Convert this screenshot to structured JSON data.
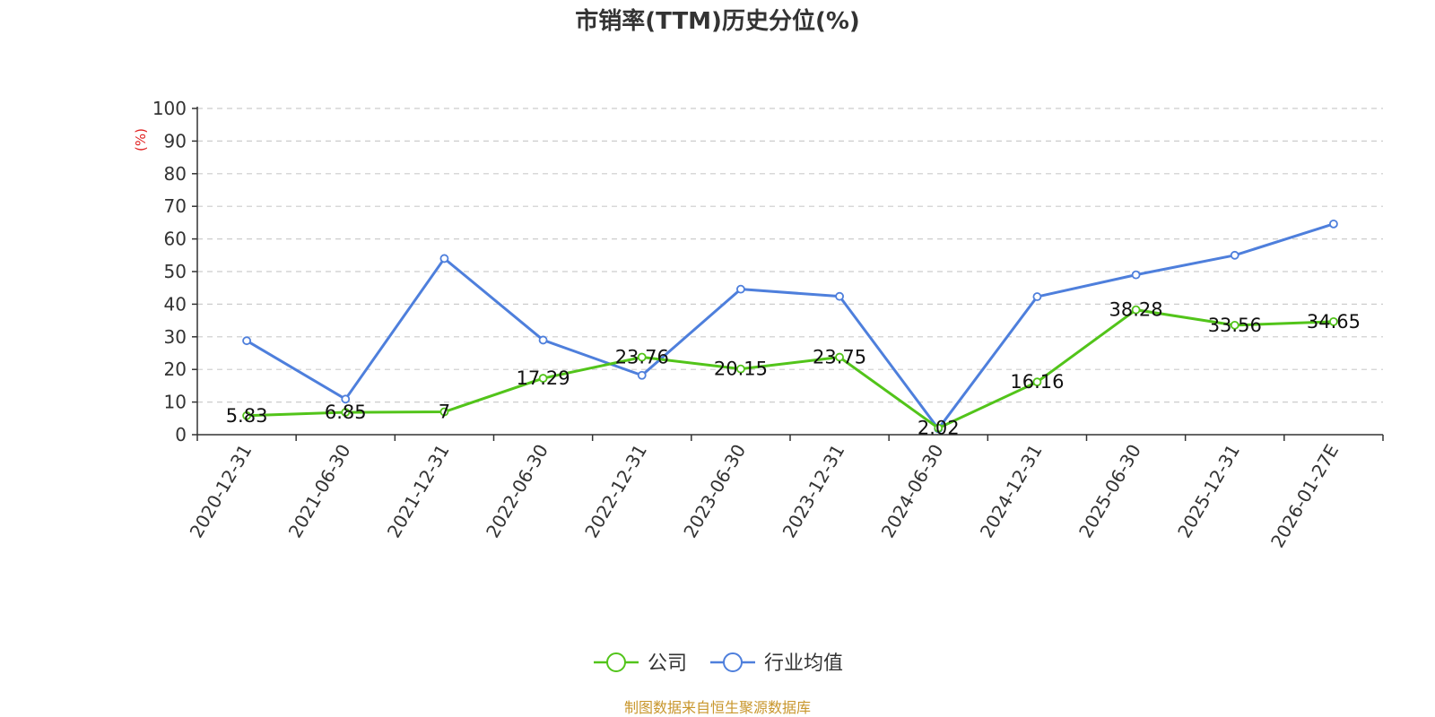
{
  "chart_data": {
    "type": "line",
    "title": "市销率(TTM)历史分位(%)",
    "ylabel": "(%)",
    "xlabel": "",
    "ylim": [
      0,
      100
    ],
    "yticks": [
      "0",
      "10",
      "20",
      "30",
      "40",
      "50",
      "60",
      "70",
      "80",
      "90",
      "100"
    ],
    "categories": [
      "2020-12-31",
      "2021-06-30",
      "2021-12-31",
      "2022-06-30",
      "2022-12-31",
      "2023-06-30",
      "2023-12-31",
      "2024-06-30",
      "2024-12-31",
      "2025-06-30",
      "2025-12-31",
      "2026-01-27E"
    ],
    "series": [
      {
        "name": "公司",
        "color": "#52c41a",
        "values": [
          5.83,
          6.85,
          7,
          17.29,
          23.76,
          20.15,
          23.75,
          2.02,
          16.16,
          38.28,
          33.56,
          34.65
        ],
        "labels": [
          "5.83",
          "6.85",
          "7",
          "17.29",
          "23.76",
          "20.15",
          "23.75",
          "2.02",
          "16.16",
          "38.28",
          "33.56",
          "34.65"
        ]
      },
      {
        "name": "行业均值",
        "color": "#4e7fdc",
        "values": [
          28.8,
          10.9,
          54.0,
          29.0,
          18.2,
          44.6,
          42.4,
          1.8,
          42.3,
          49.0,
          55.0,
          64.6
        ]
      }
    ],
    "grid": true,
    "legend_position": "bottom-center",
    "unit_color": "#e02020"
  },
  "source": {
    "text": "制图数据来自恒生聚源数据库",
    "color": "#c8962c"
  }
}
